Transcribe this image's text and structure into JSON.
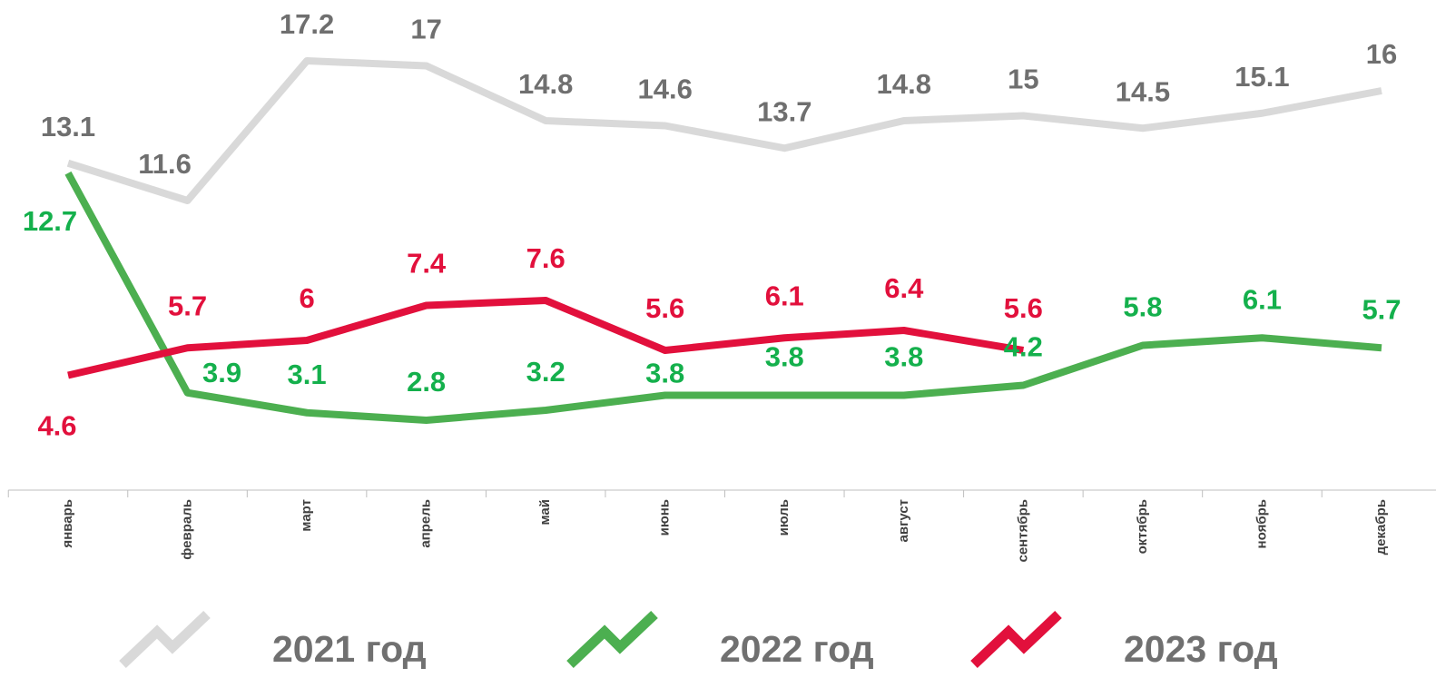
{
  "chart_data": {
    "type": "line",
    "categories": [
      "январь",
      "февраль",
      "март",
      "апрель",
      "май",
      "июнь",
      "июль",
      "август",
      "сентябрь",
      "октябрь",
      "ноябрь",
      "декабрь"
    ],
    "series": [
      {
        "name": "2021 год",
        "color": "#d9d9d9",
        "label_color": "#6f6f6f",
        "values": [
          13.1,
          11.6,
          17.2,
          17.0,
          14.8,
          14.6,
          13.7,
          14.8,
          15.0,
          14.5,
          15.1,
          16.0
        ]
      },
      {
        "name": "2022 год",
        "color": "#4caf50",
        "label_color": "#14b04c",
        "values": [
          12.7,
          3.9,
          3.1,
          2.8,
          3.2,
          3.8,
          3.8,
          3.8,
          4.2,
          5.8,
          6.1,
          5.7
        ]
      },
      {
        "name": "2023 год",
        "color": "#e2103c",
        "label_color": "#e2103c",
        "values": [
          4.6,
          5.7,
          6.0,
          7.4,
          7.6,
          5.6,
          6.1,
          6.4,
          5.6,
          null,
          null,
          null
        ]
      }
    ]
  }
}
